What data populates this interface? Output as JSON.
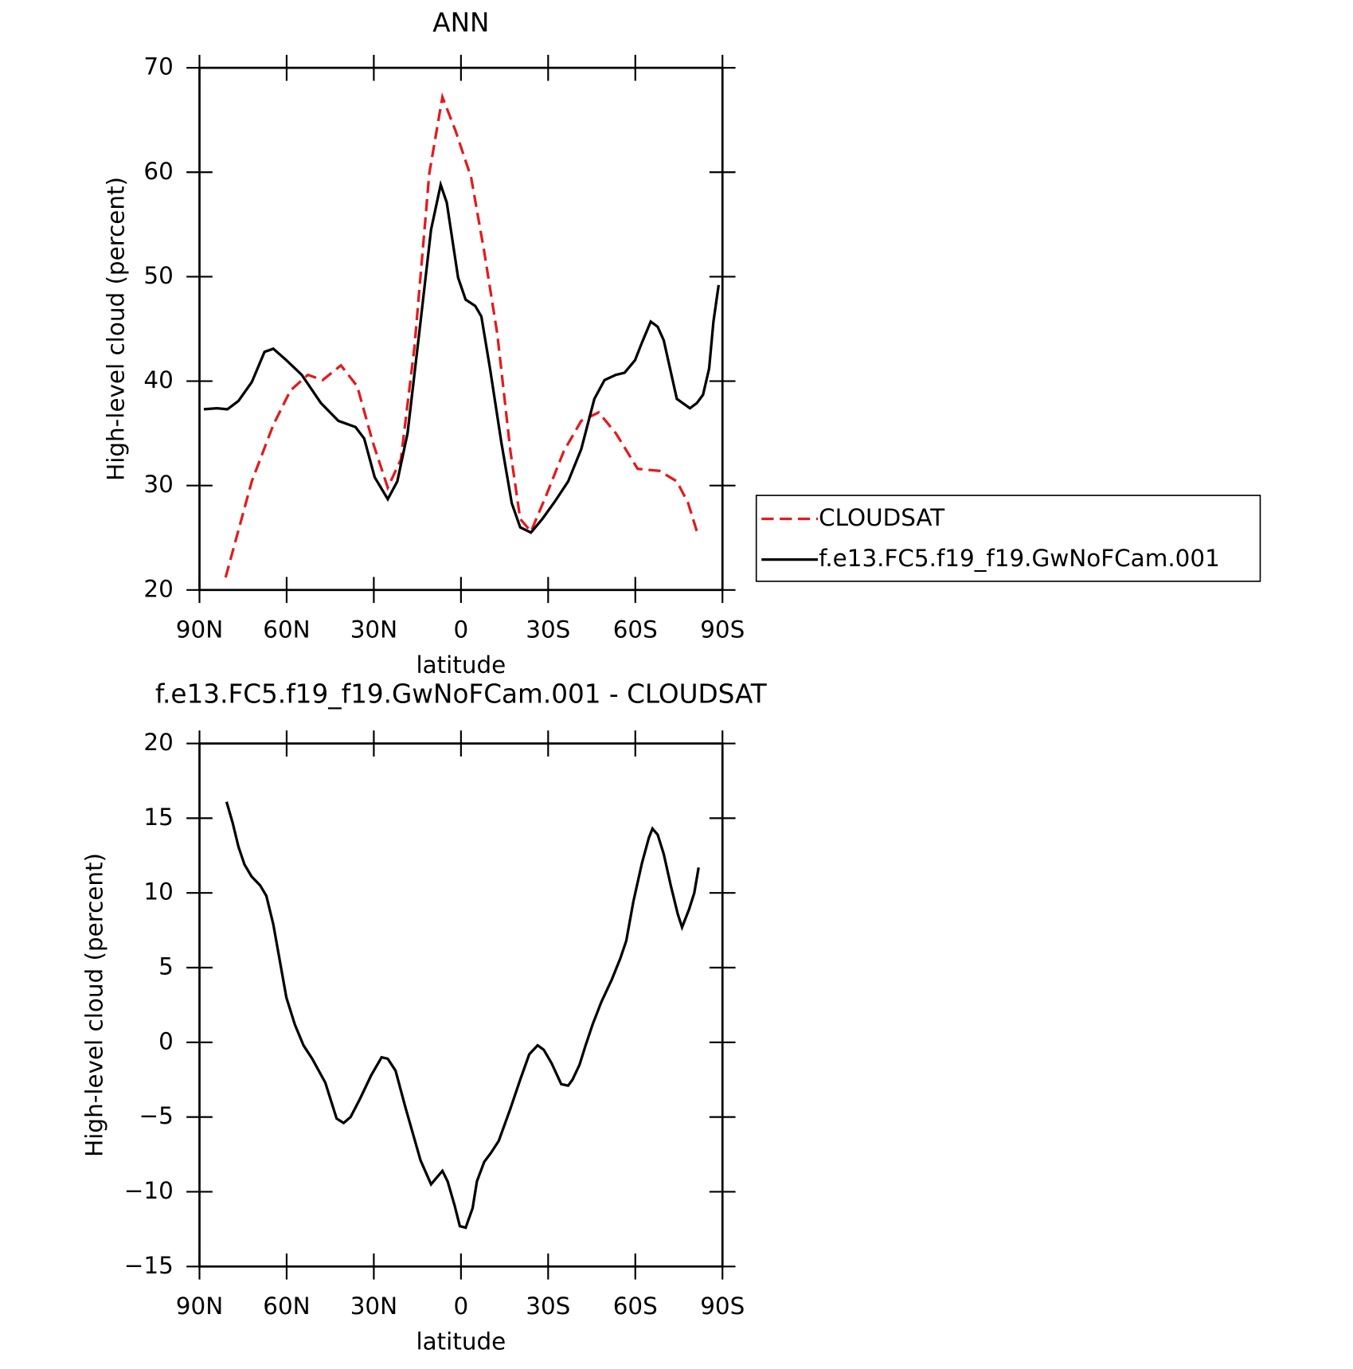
{
  "chart_data": [
    {
      "type": "line",
      "title": "ANN",
      "xlabel": "latitude",
      "ylabel": "High-level cloud (percent)",
      "xlim": [
        90,
        -90
      ],
      "ylim": [
        20,
        70
      ],
      "xticks": [
        {
          "value": 90,
          "label": "90N"
        },
        {
          "value": 60,
          "label": "60N"
        },
        {
          "value": 30,
          "label": "30N"
        },
        0,
        {
          "value": -30,
          "label": "30S"
        },
        {
          "value": -60,
          "label": "60S"
        },
        {
          "value": -90,
          "label": "90S"
        }
      ],
      "yticks": [
        20,
        30,
        40,
        50,
        60,
        70
      ],
      "legend": "right",
      "series": [
        {
          "name": "CLOUDSAT",
          "color": "#e41a1c",
          "dashed": true,
          "x": [
            81,
            72,
            64.6,
            58.7,
            52.7,
            47.6,
            41.3,
            35.7,
            30.3,
            25.2,
            20.7,
            16,
            10.9,
            6.4,
            1.9,
            -3.5,
            -8,
            -12.5,
            -17,
            -20.4,
            -24.1,
            -29.4,
            -35.4,
            -41.4,
            -47.4,
            -53.3,
            -60.8,
            -68.3,
            -74.3,
            -78.2,
            -81.2
          ],
          "values": [
            21.2,
            30.4,
            35.8,
            39.1,
            40.6,
            40.1,
            41.5,
            39.5,
            34.1,
            29.8,
            32.5,
            43.3,
            59.9,
            67.2,
            64.0,
            59.5,
            52.4,
            44.5,
            33.3,
            26.8,
            25.6,
            29.1,
            33.3,
            36.2,
            37.0,
            35.0,
            31.6,
            31.4,
            30.4,
            28.3,
            25.6
          ]
        },
        {
          "name": "f.e13.FC5.f19_f19.GwNoFCam.001",
          "color": "#000000",
          "dashed": false,
          "x": [
            88.5,
            84,
            80.4,
            76.6,
            72,
            67.6,
            64.6,
            60.1,
            54.8,
            48.2,
            42.2,
            36.3,
            33.3,
            29.7,
            25.2,
            21.9,
            18.4,
            13.9,
            10.3,
            7,
            4.9,
            1,
            -1.6,
            -4.9,
            -7,
            -10,
            -13.9,
            -17.5,
            -20.4,
            -24.1,
            -28,
            -32.4,
            -36.9,
            -41.4,
            -45.9,
            -49.4,
            -53.3,
            -56.3,
            -59.9,
            -62.3,
            -65.3,
            -67.7,
            -69.8,
            -74.3,
            -78.8,
            -81.2,
            -83.3,
            -85.4,
            -86.9,
            -88.7
          ],
          "values": [
            37.3,
            37.4,
            37.3,
            38.1,
            39.9,
            42.8,
            43.1,
            42.0,
            40.6,
            37.9,
            36.2,
            35.6,
            34.5,
            30.8,
            28.7,
            30.4,
            35.0,
            45.7,
            54.5,
            58.8,
            57.1,
            49.9,
            47.8,
            47.2,
            46.2,
            41.2,
            34.1,
            28.3,
            26.0,
            25.5,
            26.8,
            28.5,
            30.4,
            33.5,
            38.3,
            40.1,
            40.6,
            40.8,
            42.0,
            43.7,
            45.7,
            45.2,
            43.9,
            38.3,
            37.4,
            37.9,
            38.7,
            41.2,
            45.7,
            49.2
          ]
        }
      ]
    },
    {
      "type": "line",
      "title": "f.e13.FC5.f19_f19.GwNoFCam.001 - CLOUDSAT",
      "xlabel": "latitude",
      "ylabel": "High-level cloud (percent)",
      "xlim": [
        90,
        -90
      ],
      "ylim": [
        -15,
        20
      ],
      "xticks": [
        {
          "value": 90,
          "label": "90N"
        },
        {
          "value": 60,
          "label": "60N"
        },
        {
          "value": 30,
          "label": "30N"
        },
        0,
        {
          "value": -30,
          "label": "30S"
        },
        {
          "value": -60,
          "label": "60S"
        },
        {
          "value": -90,
          "label": "90S"
        }
      ],
      "yticks": [
        {
          "value": -15,
          "label": "−15"
        },
        {
          "value": -10,
          "label": "−10"
        },
        {
          "value": -5,
          "label": "−5"
        },
        0,
        5,
        10,
        15,
        20
      ],
      "series": [
        {
          "color": "#000000",
          "dashed": false,
          "x": [
            80.7,
            78.6,
            76.6,
            74.5,
            72.1,
            69.1,
            67,
            64.6,
            60.1,
            57.2,
            54.2,
            51.2,
            46.7,
            42.8,
            40.4,
            38,
            34.8,
            30.9,
            27.3,
            25.2,
            22.5,
            19.2,
            13.9,
            10.3,
            6.4,
            4.6,
            2.2,
            0.4,
            -1.6,
            -4,
            -5.5,
            -8,
            -10.3,
            -13,
            -16.9,
            -20.4,
            -23.5,
            -26.4,
            -28.5,
            -31.2,
            -34.5,
            -36.9,
            -38.4,
            -40.8,
            -42.9,
            -45.3,
            -48.3,
            -51.9,
            -54.8,
            -56.9,
            -59.3,
            -62.3,
            -64.7,
            -65.9,
            -67.7,
            -69.8,
            -72.2,
            -74.6,
            -76.1,
            -78.5,
            -80.3,
            -81.8
          ],
          "values": [
            16.1,
            14.7,
            13.1,
            11.9,
            11.1,
            10.5,
            9.8,
            7.9,
            3.0,
            1.2,
            -0.2,
            -1.1,
            -2.7,
            -5.1,
            -5.4,
            -5.0,
            -3.8,
            -2.2,
            -1.0,
            -1.1,
            -1.9,
            -4.3,
            -7.9,
            -9.5,
            -8.6,
            -9.3,
            -10.9,
            -12.3,
            -12.4,
            -11.1,
            -9.3,
            -8.0,
            -7.4,
            -6.6,
            -4.5,
            -2.5,
            -0.8,
            -0.2,
            -0.5,
            -1.4,
            -2.8,
            -2.9,
            -2.5,
            -1.5,
            -0.2,
            1.2,
            2.7,
            4.2,
            5.6,
            6.8,
            9.4,
            12.0,
            13.7,
            14.3,
            13.9,
            12.6,
            10.5,
            8.6,
            7.7,
            8.9,
            10.0,
            11.7
          ]
        }
      ]
    }
  ]
}
